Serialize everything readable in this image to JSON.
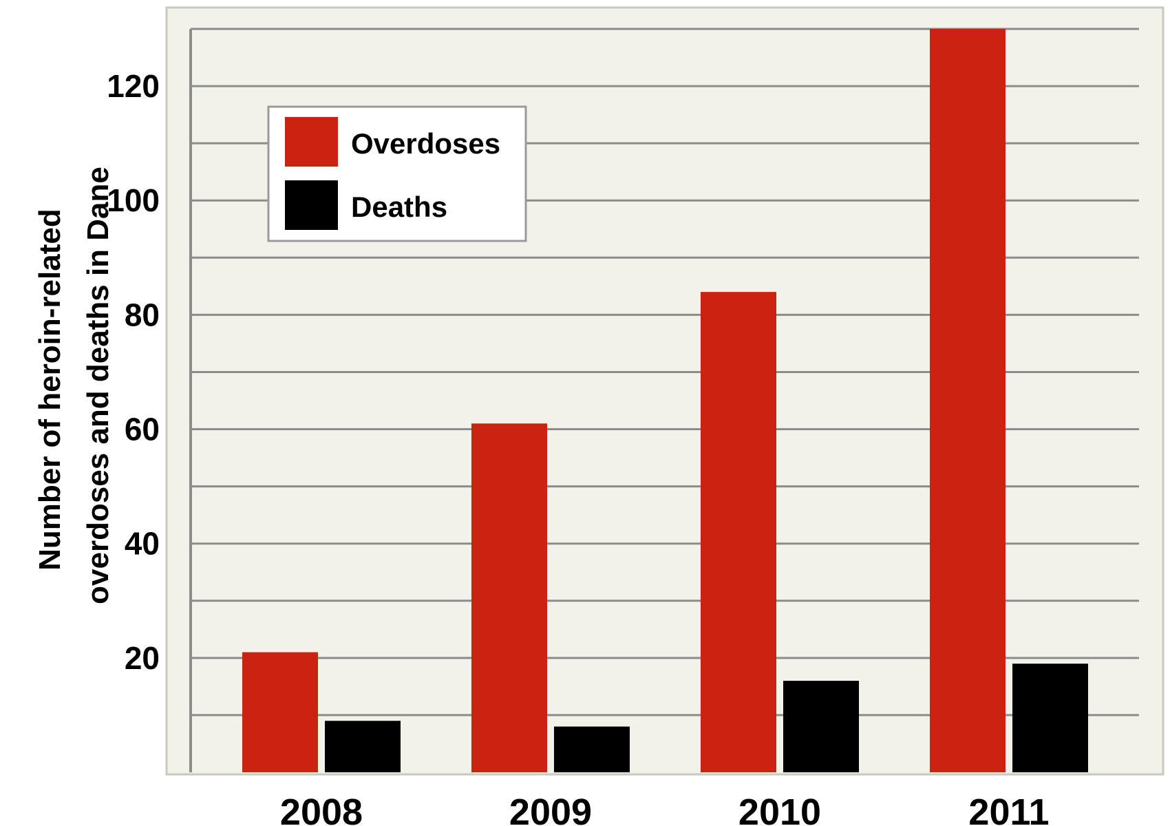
{
  "chart_data": {
    "type": "bar",
    "title": "",
    "xlabel": "",
    "ylabel": [
      "Number of heroin-related",
      "overdoses and deaths in Dane"
    ],
    "categories": [
      "2008",
      "2009",
      "2010",
      "2011"
    ],
    "series": [
      {
        "name": "Overdoses",
        "color": "#cc2210",
        "values": [
          21,
          61,
          84,
          130
        ]
      },
      {
        "name": "Deaths",
        "color": "#000000",
        "values": [
          9,
          8,
          16,
          19
        ]
      }
    ],
    "ylim": [
      0,
      130
    ],
    "yticks": [
      20,
      40,
      60,
      80,
      100,
      120
    ],
    "grid": true,
    "legend_position": "top-left",
    "colors": {
      "plot_background": "#f2f1ea",
      "grid": "#8c8c8c",
      "frame": "#c9c9bd"
    }
  }
}
